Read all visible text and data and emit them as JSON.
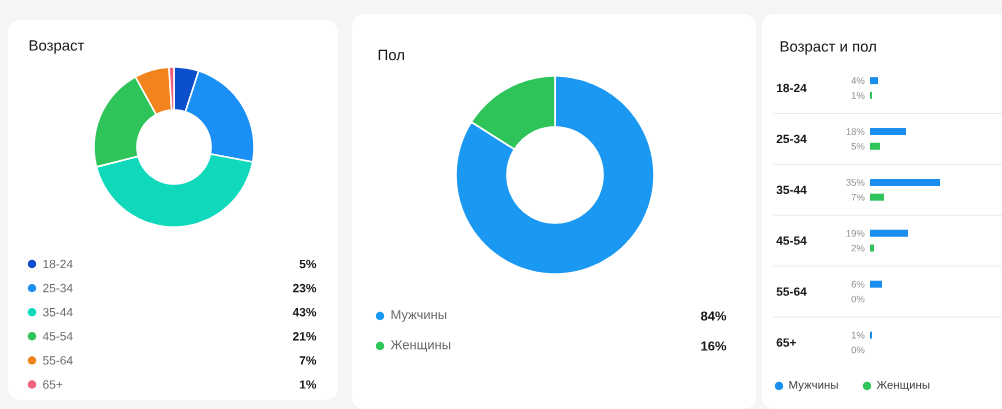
{
  "chart_data": [
    {
      "type": "donut",
      "title": "Возраст",
      "categories": [
        "18-24",
        "25-34",
        "35-44",
        "45-54",
        "55-64",
        "65+"
      ],
      "values": [
        5,
        23,
        43,
        21,
        7,
        1
      ],
      "colors": [
        "#0b4fcc",
        "#1a8ff5",
        "#10d8bb",
        "#2ec45a",
        "#f2841e",
        "#f0627e"
      ],
      "value_labels": [
        "5%",
        "23%",
        "43%",
        "21%",
        "7%",
        "1%"
      ],
      "legend": "bottom"
    },
    {
      "type": "donut",
      "title": "Пол",
      "categories": [
        "Мужчины",
        "Женщины"
      ],
      "values": [
        84,
        16
      ],
      "colors": [
        "#1a98f2",
        "#2ec45a"
      ],
      "value_labels": [
        "84%",
        "16%"
      ],
      "legend": "bottom"
    },
    {
      "type": "bar",
      "orientation": "horizontal",
      "title": "Возраст и пол",
      "categories": [
        "18-24",
        "25-34",
        "35-44",
        "45-54",
        "55-64",
        "65+"
      ],
      "legend": "bottom",
      "series": [
        {
          "name": "Мужчины",
          "color": "#1a8ff0",
          "values": [
            4,
            18,
            35,
            19,
            6,
            1
          ],
          "value_labels": [
            "4%",
            "18%",
            "35%",
            "19%",
            "6%",
            "1%"
          ]
        },
        {
          "name": "Женщины",
          "color": "#2ec45a",
          "values": [
            1,
            5,
            7,
            2,
            0,
            0
          ],
          "value_labels": [
            "1%",
            "5%",
            "7%",
            "2%",
            "0%",
            "0%"
          ]
        }
      ]
    }
  ]
}
